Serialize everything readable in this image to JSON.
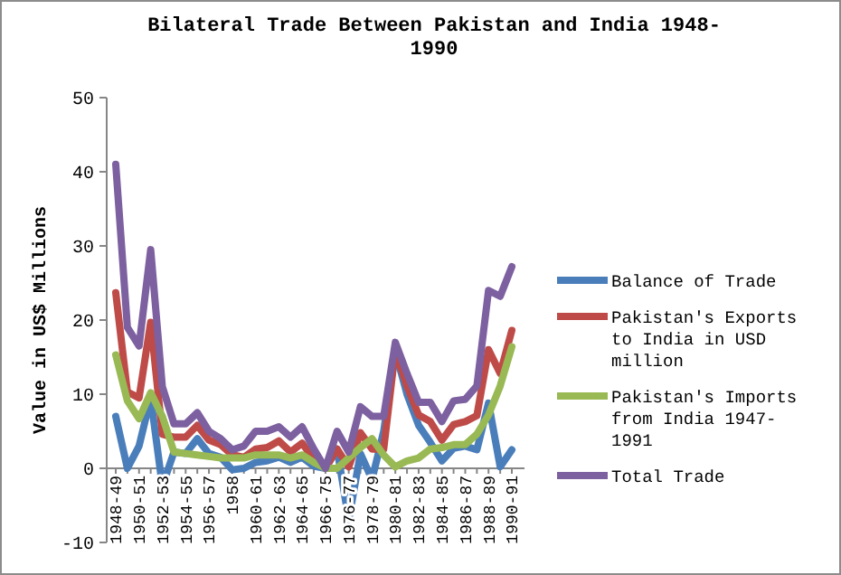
{
  "chart_data": {
    "type": "line",
    "title": "Bilateral Trade Between Pakistan and India 1948-1990",
    "ylabel": "Value in US$ Millions",
    "categories": [
      "1948-49",
      null,
      "1950-51",
      null,
      "1952-53",
      null,
      "1954-55",
      null,
      "1956-57",
      null,
      "1958",
      null,
      "1960-61",
      null,
      "1962-63",
      null,
      "1964-65",
      null,
      "1966-75",
      null,
      "1976-77",
      null,
      "1978-79",
      null,
      "1980-81",
      null,
      "1982-83",
      null,
      "1984-85",
      null,
      "1986-87",
      null,
      "1988-89",
      null,
      "1990-91"
    ],
    "series": [
      {
        "name": "Balance of Trade",
        "color": "#4a7ebb",
        "values": [
          7,
          0,
          3,
          9.5,
          -2.4,
          2.2,
          2,
          4,
          2,
          1.5,
          -0.2,
          0,
          0.8,
          1,
          1.5,
          0.8,
          1.5,
          0.3,
          0,
          2.6,
          -7,
          2,
          -1.5,
          5,
          15.8,
          10,
          5.8,
          3.5,
          1,
          2.7,
          3,
          2.5,
          8.8,
          0.2,
          2.5
        ]
      },
      {
        "name": "Pakistan's Exports to India in USD million",
        "color": "#be4b48",
        "values": [
          23.7,
          10.3,
          9.5,
          19.7,
          4.6,
          4.2,
          4.2,
          5.8,
          3.8,
          3.2,
          1.8,
          1.5,
          2.6,
          2.8,
          3.7,
          2.2,
          3.4,
          1.2,
          0,
          2.6,
          0.2,
          4.8,
          2.6,
          2.6,
          16,
          11.1,
          7.2,
          6.3,
          3.8,
          5.9,
          6.3,
          7.1,
          16,
          12.8,
          18.6
        ]
      },
      {
        "name": "Pakistan's Imports from India 1947-1991",
        "color": "#98b954",
        "values": [
          15.3,
          9.1,
          6.7,
          10.2,
          7,
          2.2,
          2,
          1.8,
          1.6,
          1.4,
          1.4,
          1.4,
          1.8,
          1.8,
          1.8,
          1.4,
          1.8,
          0.8,
          0,
          0,
          1.4,
          2.8,
          4,
          1.8,
          0.2,
          1,
          1.4,
          2.6,
          2.8,
          3.2,
          3.2,
          4.6,
          7.2,
          11.1,
          16.4
        ]
      },
      {
        "name": "Total Trade",
        "color": "#7d60a0",
        "values": [
          41,
          19,
          16.5,
          29.5,
          11,
          6,
          6,
          7.5,
          5,
          4,
          2.5,
          3,
          5,
          5,
          5.6,
          4.2,
          5.6,
          2.6,
          0,
          5,
          2.2,
          8.3,
          7,
          7,
          17,
          12.8,
          8.9,
          8.9,
          6.3,
          9.1,
          9.3,
          11.1,
          24,
          23.2,
          27.2
        ]
      }
    ],
    "ylim": [
      -10,
      50
    ],
    "yticks": [
      -10,
      0,
      10,
      20,
      30,
      40,
      50
    ],
    "grid": false,
    "legend": "right",
    "marker": "none",
    "line_style": "solid"
  }
}
